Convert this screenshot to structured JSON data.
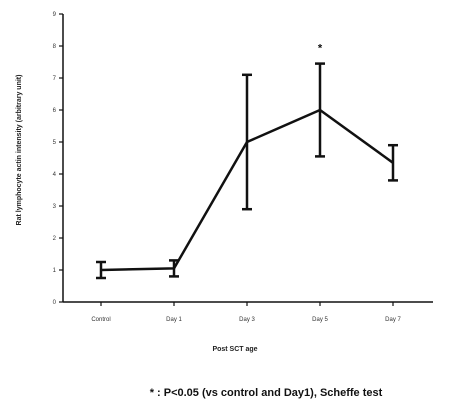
{
  "chart_data": {
    "type": "line",
    "title": "",
    "xlabel": "Post SCT age",
    "ylabel": "Rat lymphocyte actin intensity (arbitrary unit)",
    "categories": [
      "Control",
      "Day 1",
      "Day 3",
      "Day 5",
      "Day 7"
    ],
    "ylim": [
      0,
      9
    ],
    "yticks": [
      0,
      1,
      2,
      3,
      4,
      5,
      6,
      7,
      8,
      9
    ],
    "series": [
      {
        "values": [
          1.0,
          1.05,
          5.0,
          6.0,
          4.35
        ],
        "error": [
          0.25,
          0.25,
          2.1,
          1.45,
          0.55
        ]
      }
    ],
    "annotations": [
      {
        "text": "*",
        "category": "Day 5"
      }
    ],
    "grid": false,
    "legend": "none",
    "footnote": "* : P<0.05 (vs control and Day1), Scheffe test",
    "line_color": "#111111"
  }
}
